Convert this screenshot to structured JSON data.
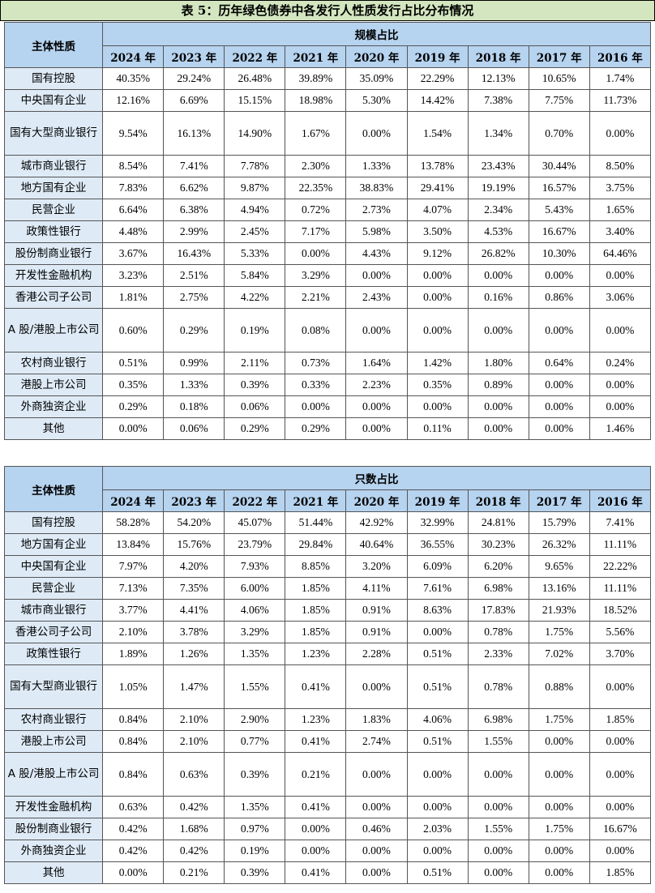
{
  "title": "表 5：历年绿色债券中各发行人性质发行占比分布情况",
  "years": [
    "2024 年",
    "2023 年",
    "2022 年",
    "2021 年",
    "2020 年",
    "2019 年",
    "2018 年",
    "2017 年",
    "2016 年"
  ],
  "table1": {
    "corner": "主体性质",
    "group_header": "规模占比",
    "rows": [
      {
        "name": "国有控股",
        "values": [
          "40.35%",
          "29.24%",
          "26.48%",
          "39.89%",
          "35.09%",
          "22.29%",
          "12.13%",
          "10.65%",
          "1.74%"
        ]
      },
      {
        "name": "中央国有企业",
        "values": [
          "12.16%",
          "6.69%",
          "15.15%",
          "18.98%",
          "5.30%",
          "14.42%",
          "7.38%",
          "7.75%",
          "11.73%"
        ]
      },
      {
        "name": "国有大型商业银行",
        "values": [
          "9.54%",
          "16.13%",
          "14.90%",
          "1.67%",
          "0.00%",
          "1.54%",
          "1.34%",
          "0.70%",
          "0.00%"
        ]
      },
      {
        "name": "城市商业银行",
        "values": [
          "8.54%",
          "7.41%",
          "7.78%",
          "2.30%",
          "1.33%",
          "13.78%",
          "23.43%",
          "30.44%",
          "8.50%"
        ]
      },
      {
        "name": "地方国有企业",
        "values": [
          "7.83%",
          "6.62%",
          "9.87%",
          "22.35%",
          "38.83%",
          "29.41%",
          "19.19%",
          "16.57%",
          "3.75%"
        ]
      },
      {
        "name": "民营企业",
        "values": [
          "6.64%",
          "6.38%",
          "4.94%",
          "0.72%",
          "2.73%",
          "4.07%",
          "2.34%",
          "5.43%",
          "1.65%"
        ]
      },
      {
        "name": "政策性银行",
        "values": [
          "4.48%",
          "2.99%",
          "2.45%",
          "7.17%",
          "5.98%",
          "3.50%",
          "4.53%",
          "16.67%",
          "3.40%"
        ]
      },
      {
        "name": "股份制商业银行",
        "values": [
          "3.67%",
          "16.43%",
          "5.33%",
          "0.00%",
          "4.43%",
          "9.12%",
          "26.82%",
          "10.30%",
          "64.46%"
        ]
      },
      {
        "name": "开发性金融机构",
        "values": [
          "3.23%",
          "2.51%",
          "5.84%",
          "3.29%",
          "0.00%",
          "0.00%",
          "0.00%",
          "0.00%",
          "0.00%"
        ]
      },
      {
        "name": "香港公司子公司",
        "values": [
          "1.81%",
          "2.75%",
          "4.22%",
          "2.21%",
          "2.43%",
          "0.00%",
          "0.16%",
          "0.86%",
          "3.06%"
        ]
      },
      {
        "name": "A 股/港股上市公司",
        "values": [
          "0.60%",
          "0.29%",
          "0.19%",
          "0.08%",
          "0.00%",
          "0.00%",
          "0.00%",
          "0.00%",
          "0.00%"
        ]
      },
      {
        "name": "农村商业银行",
        "values": [
          "0.51%",
          "0.99%",
          "2.11%",
          "0.73%",
          "1.64%",
          "1.42%",
          "1.80%",
          "0.64%",
          "0.24%"
        ]
      },
      {
        "name": "港股上市公司",
        "values": [
          "0.35%",
          "1.33%",
          "0.39%",
          "0.33%",
          "2.23%",
          "0.35%",
          "0.89%",
          "0.00%",
          "0.00%"
        ]
      },
      {
        "name": "外商独资企业",
        "values": [
          "0.29%",
          "0.18%",
          "0.06%",
          "0.00%",
          "0.00%",
          "0.00%",
          "0.00%",
          "0.00%",
          "0.00%"
        ]
      },
      {
        "name": "其他",
        "values": [
          "0.00%",
          "0.06%",
          "0.29%",
          "0.29%",
          "0.00%",
          "0.11%",
          "0.00%",
          "0.00%",
          "1.46%"
        ]
      }
    ]
  },
  "table2": {
    "corner": "主体性质",
    "group_header": "只数占比",
    "rows": [
      {
        "name": "国有控股",
        "values": [
          "58.28%",
          "54.20%",
          "45.07%",
          "51.44%",
          "42.92%",
          "32.99%",
          "24.81%",
          "15.79%",
          "7.41%"
        ]
      },
      {
        "name": "地方国有企业",
        "values": [
          "13.84%",
          "15.76%",
          "23.79%",
          "29.84%",
          "40.64%",
          "36.55%",
          "30.23%",
          "26.32%",
          "11.11%"
        ]
      },
      {
        "name": "中央国有企业",
        "values": [
          "7.97%",
          "4.20%",
          "7.93%",
          "8.85%",
          "3.20%",
          "6.09%",
          "6.20%",
          "9.65%",
          "22.22%"
        ]
      },
      {
        "name": "民营企业",
        "values": [
          "7.13%",
          "7.35%",
          "6.00%",
          "1.85%",
          "4.11%",
          "7.61%",
          "6.98%",
          "13.16%",
          "11.11%"
        ]
      },
      {
        "name": "城市商业银行",
        "values": [
          "3.77%",
          "4.41%",
          "4.06%",
          "1.85%",
          "0.91%",
          "8.63%",
          "17.83%",
          "21.93%",
          "18.52%"
        ]
      },
      {
        "name": "香港公司子公司",
        "values": [
          "2.10%",
          "3.78%",
          "3.29%",
          "1.85%",
          "0.91%",
          "0.00%",
          "0.78%",
          "1.75%",
          "5.56%"
        ]
      },
      {
        "name": "政策性银行",
        "values": [
          "1.89%",
          "1.26%",
          "1.35%",
          "1.23%",
          "2.28%",
          "0.51%",
          "2.33%",
          "7.02%",
          "3.70%"
        ]
      },
      {
        "name": "国有大型商业银行",
        "values": [
          "1.05%",
          "1.47%",
          "1.55%",
          "0.41%",
          "0.00%",
          "0.51%",
          "0.78%",
          "0.88%",
          "0.00%"
        ]
      },
      {
        "name": "农村商业银行",
        "values": [
          "0.84%",
          "2.10%",
          "2.90%",
          "1.23%",
          "1.83%",
          "4.06%",
          "6.98%",
          "1.75%",
          "1.85%"
        ]
      },
      {
        "name": "港股上市公司",
        "values": [
          "0.84%",
          "2.10%",
          "0.77%",
          "0.41%",
          "2.74%",
          "0.51%",
          "1.55%",
          "0.00%",
          "0.00%"
        ]
      },
      {
        "name": "A 股/港股上市公司",
        "values": [
          "0.84%",
          "0.63%",
          "0.39%",
          "0.21%",
          "0.00%",
          "0.00%",
          "0.00%",
          "0.00%",
          "0.00%"
        ]
      },
      {
        "name": "开发性金融机构",
        "values": [
          "0.63%",
          "0.42%",
          "1.35%",
          "0.41%",
          "0.00%",
          "0.00%",
          "0.00%",
          "0.00%",
          "0.00%"
        ]
      },
      {
        "name": "股份制商业银行",
        "values": [
          "0.42%",
          "1.68%",
          "0.97%",
          "0.00%",
          "0.46%",
          "2.03%",
          "1.55%",
          "1.75%",
          "16.67%"
        ]
      },
      {
        "name": "外商独资企业",
        "values": [
          "0.42%",
          "0.42%",
          "0.19%",
          "0.00%",
          "0.00%",
          "0.00%",
          "0.00%",
          "0.00%",
          "0.00%"
        ]
      },
      {
        "name": "其他",
        "values": [
          "0.00%",
          "0.21%",
          "0.39%",
          "0.41%",
          "0.00%",
          "0.51%",
          "0.00%",
          "0.00%",
          "1.85%"
        ]
      }
    ]
  }
}
